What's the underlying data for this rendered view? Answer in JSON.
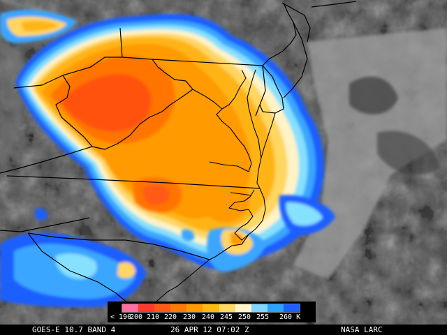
{
  "caption": {
    "instrument": "GOES-E 10.7 BAND 4",
    "datetime": "26 APR 12 07:02 Z",
    "source": "NASA LARC"
  },
  "legend": {
    "unit": "K",
    "labels": [
      "< 190",
      "200",
      "210",
      "220",
      "230",
      "240",
      "245",
      "250",
      "255",
      "260 K"
    ],
    "colors": [
      "#ff6ea0",
      "#ff3a2a",
      "#ff5a14",
      "#ff7a00",
      "#ff9a00",
      "#ffba10",
      "#ffd860",
      "#fff5cc",
      "#7fd8ff",
      "#2aa4ff",
      "#1f5fff"
    ]
  },
  "map": {
    "cloud_colors": {
      "blue_dark": "#1f5fff",
      "blue_light": "#3aa6ff",
      "cyan": "#86e0ff",
      "cream": "#fff3c8",
      "yellow": "#ffd660",
      "light_orange": "#ffb418",
      "orange": "#ff9a00",
      "deep_orange": "#ff7400",
      "red_orange": "#ff5210"
    }
  }
}
